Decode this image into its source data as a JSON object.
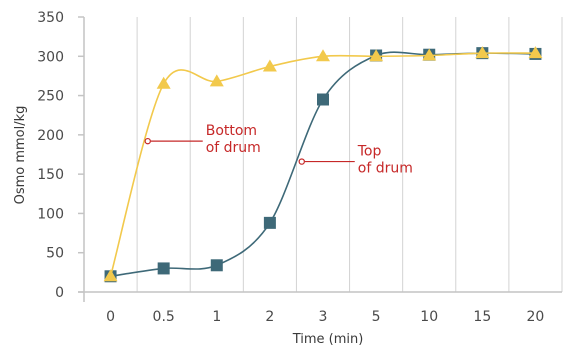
{
  "chart_data": {
    "type": "line",
    "title": "",
    "xlabel": "Time (min)",
    "ylabel": "Osmo mmol/kg",
    "ylim": [
      0,
      350
    ],
    "yticks": [
      0,
      50,
      100,
      150,
      200,
      250,
      300,
      350
    ],
    "categories": [
      "0",
      "0.5",
      "1",
      "2",
      "3",
      "5",
      "10",
      "15",
      "20"
    ],
    "grid": "vertical",
    "legend": "none",
    "series": [
      {
        "marker": "triangle",
        "color": "#f2c94c",
        "values": [
          20,
          265,
          268,
          287,
          300,
          300,
          301,
          304,
          304
        ]
      },
      {
        "marker": "square",
        "color": "#3e6978",
        "values": [
          20,
          30,
          34,
          88,
          245,
          301,
          302,
          304,
          303
        ]
      }
    ],
    "annotations": [
      {
        "lines": [
          "Bottom",
          "of drum"
        ],
        "x": 0.7,
        "y": 192,
        "color": "#c62828"
      },
      {
        "lines": [
          "Top",
          "of drum"
        ],
        "x": 3.6,
        "y": 166,
        "color": "#c62828"
      }
    ]
  }
}
